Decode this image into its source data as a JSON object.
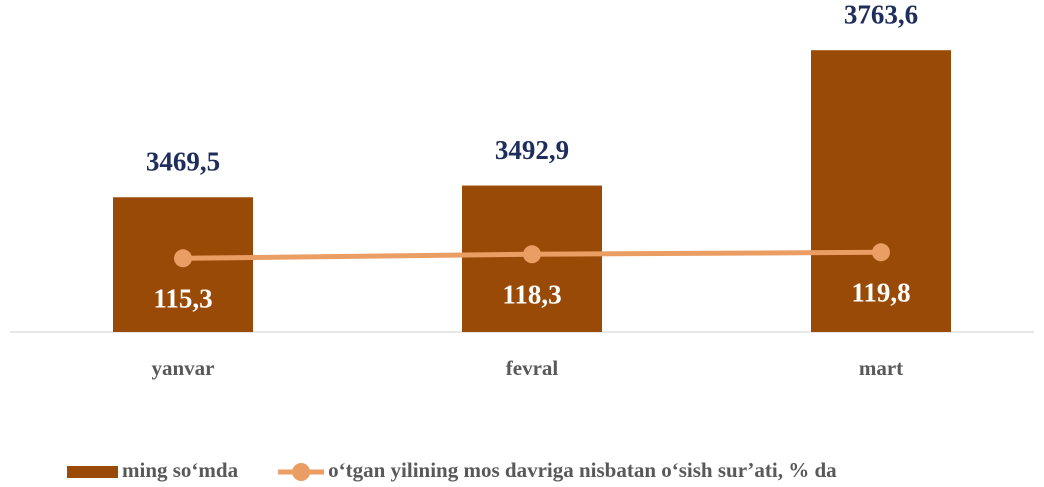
{
  "chart_data": {
    "type": "bar",
    "categories": [
      "yanvar",
      "fevral",
      "mart"
    ],
    "series": [
      {
        "name": "ming so‘mda",
        "type": "bar",
        "color": "#9a4a07",
        "values": [
          3469.5,
          3492.9,
          3763.6
        ],
        "value_labels": [
          "3469,5",
          "3492,9",
          "3763,6"
        ]
      },
      {
        "name": "o‘tgan yilining mos davriga nisbatan o‘sish sur’ati, % da",
        "type": "line",
        "axis": "y2",
        "color": "#eb9e64",
        "values": [
          115.3,
          118.3,
          119.8
        ],
        "value_labels": [
          "115,3",
          "118,3",
          "119,8"
        ]
      }
    ],
    "ylim": [
      3200,
      3800
    ],
    "y2lim": [
      60,
      285
    ],
    "legend": "bottom"
  }
}
